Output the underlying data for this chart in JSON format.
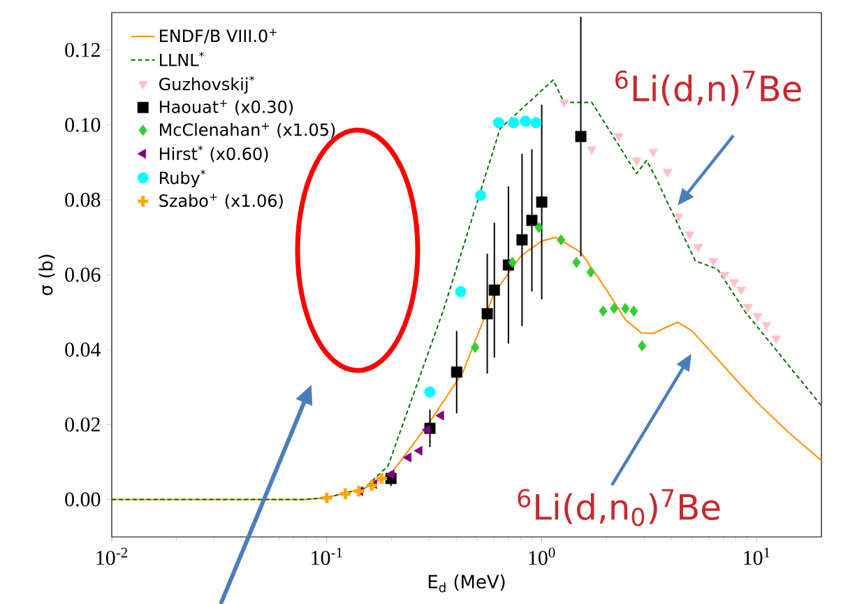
{
  "chart_data": {
    "type": "scatter",
    "xlabel": "E$_{d}$ (MeV)",
    "ylabel": "σ (b)",
    "log": "x",
    "xlim": [
      0.01,
      20
    ],
    "ylim": [
      -0.01,
      0.13
    ],
    "xticks": [
      {
        "value": 0.01,
        "label": "10$^{-2}$"
      },
      {
        "value": 0.1,
        "label": "10$^{-1}$"
      },
      {
        "value": 1,
        "label": "10$^{0}$"
      },
      {
        "value": 10,
        "label": "10$^{1}$"
      }
    ],
    "yticks": [
      {
        "value": 0,
        "label": "0.00"
      },
      {
        "value": 0.02,
        "label": "0.02"
      },
      {
        "value": 0.04,
        "label": "0.04"
      },
      {
        "value": 0.06,
        "label": "0.06"
      },
      {
        "value": 0.08,
        "label": "0.08"
      },
      {
        "value": 0.1,
        "label": "0.10"
      },
      {
        "value": 0.12,
        "label": "0.12"
      }
    ],
    "legend": "top left",
    "series": [
      {
        "name": "ENDF/B VIII.0$^{+}$",
        "type": "line",
        "color": "#ff8c00",
        "line_style": "solid",
        "marker": "none",
        "x": [
          0.01,
          0.08,
          0.1,
          0.15,
          0.2,
          0.3,
          0.43,
          0.6,
          0.8,
          1.0,
          1.16,
          1.52,
          2.0,
          2.45,
          2.9,
          3.3,
          3.8,
          4.3,
          5.0,
          6.0,
          8.0,
          10,
          14,
          20
        ],
        "values": [
          0,
          0,
          0.0005,
          0.003,
          0.007,
          0.0205,
          0.034,
          0.055,
          0.065,
          0.069,
          0.07,
          0.066,
          0.056,
          0.048,
          0.0445,
          0.0443,
          0.046,
          0.0473,
          0.045,
          0.04,
          0.032,
          0.026,
          0.018,
          0.0104
        ]
      },
      {
        "name": "LLNL$^{*}$",
        "type": "line",
        "color": "#007000",
        "line_style": "dashed",
        "marker": "none",
        "x": [
          0.01,
          0.08,
          0.1,
          0.15,
          0.193,
          0.351,
          0.64,
          1.13,
          1.27,
          1.71,
          2.76,
          3.07,
          3.36,
          5.18,
          6.57,
          8.86,
          20
        ],
        "values": [
          0,
          0,
          0.0005,
          0.003,
          0.009,
          0.051,
          0.099,
          0.112,
          0.106,
          0.106,
          0.087,
          0.0905,
          0.0864,
          0.0637,
          0.0615,
          0.05,
          0.025
        ]
      },
      {
        "name": "Guzhovskij$^{*}$",
        "color": "#ffc0cb",
        "marker": "triangle_down",
        "x": [
          1.27,
          1.71,
          2.28,
          2.76,
          3.3,
          3.84,
          4.33,
          4.88,
          5.34,
          6.28,
          7.09,
          7.86,
          8.47,
          9.1,
          10.1,
          11.1,
          12.3
        ],
        "values": [
          0.106,
          0.0935,
          0.097,
          0.0905,
          0.0928,
          0.0875,
          0.0756,
          0.0708,
          0.0674,
          0.0637,
          0.06,
          0.058,
          0.056,
          0.0514,
          0.049,
          0.0466,
          0.043
        ]
      },
      {
        "name": "Haouat$^{+}$ (x0.30)",
        "color": "#000000",
        "marker": "square",
        "x": [
          0.199,
          0.302,
          0.402,
          0.558,
          0.602,
          0.7,
          0.81,
          0.9,
          1.0,
          1.52
        ],
        "values": [
          0.0056,
          0.019,
          0.034,
          0.0496,
          0.0559,
          0.0626,
          0.0693,
          0.0745,
          0.0794,
          0.0969
        ],
        "errors": [
          0.002,
          0.005,
          0.011,
          0.016,
          0.018,
          0.021,
          0.023,
          0.019,
          0.026,
          0.032
        ]
      },
      {
        "name": "McClenahan$^{+}$ (x1.05)",
        "color": "#32cd32",
        "marker": "diamond",
        "x": [
          0.49,
          0.73,
          0.97,
          1.23,
          1.45,
          1.69,
          1.93,
          2.17,
          2.45,
          2.68,
          2.93
        ],
        "values": [
          0.0406,
          0.0633,
          0.0726,
          0.0693,
          0.0633,
          0.0607,
          0.0503,
          0.051,
          0.051,
          0.0503,
          0.041
        ]
      },
      {
        "name": "Hirst$^{*}$ (x0.60)",
        "color": "#800080",
        "marker": "triangle_left",
        "x": [
          0.143,
          0.166,
          0.2,
          0.24,
          0.27,
          0.294,
          0.34
        ],
        "values": [
          0.0022,
          0.0041,
          0.0067,
          0.0112,
          0.013,
          0.0186,
          0.0224
        ]
      },
      {
        "name": "Ruby$^{*}$",
        "color": "#00ffff",
        "marker": "circle",
        "x": [
          0.302,
          0.42,
          0.52,
          0.63,
          0.74,
          0.84,
          0.94
        ],
        "values": [
          0.0287,
          0.0555,
          0.0812,
          0.1006,
          0.1006,
          0.101,
          0.1006
        ]
      },
      {
        "name": "Szabo$^{+}$ (x1.06)",
        "color": "#ffa500",
        "marker": "cross",
        "x": [
          0.1,
          0.122,
          0.141,
          0.162,
          0.18
        ],
        "values": [
          0.0004,
          0.0015,
          0.0022,
          0.0037,
          0.0056
        ]
      }
    ],
    "annotations": [
      "$^{6}$Li(d,n)$^{7}$Be",
      "$^{6}$Li(d,n$_{0}$)$^{7}$Be"
    ]
  }
}
